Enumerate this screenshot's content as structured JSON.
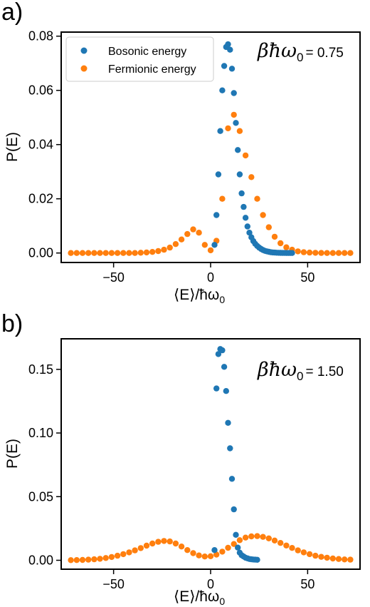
{
  "colors": {
    "bosonic": "#1f77b4",
    "fermionic": "#ff7f0e",
    "axes": "#000000"
  },
  "chart_data": [
    {
      "type": "scatter",
      "panel_label": "a)",
      "annotation": {
        "symbol": "βħω",
        "subscript": "0",
        "value": "= 0.75"
      },
      "xlabel": "⟨E⟩/ħω",
      "xlabel_sub": "0",
      "ylabel": "P(E)",
      "xlim": [
        -77,
        77
      ],
      "ylim": [
        -0.0035,
        0.0815
      ],
      "xticks": [
        -50,
        0,
        50
      ],
      "xtick_labels": [
        "−50",
        "0",
        "50"
      ],
      "yticks": [
        0.0,
        0.02,
        0.04,
        0.06,
        0.08
      ],
      "ytick_labels": [
        "0.00",
        "0.02",
        "0.04",
        "0.06",
        "0.08"
      ],
      "grid": false,
      "legend": {
        "placement": "top-left",
        "entries": [
          "Bosonic energy",
          "Fermionic energy"
        ]
      },
      "series": [
        {
          "name": "Bosonic energy",
          "x": [
            2,
            3,
            4,
            5,
            6,
            7,
            8,
            9,
            10,
            11,
            12,
            13,
            14,
            15,
            16,
            17,
            18,
            19,
            20,
            21,
            22,
            23,
            24,
            25,
            26,
            27,
            28,
            29,
            30,
            31,
            32,
            33,
            34,
            35,
            36,
            37,
            38,
            39,
            40,
            41,
            42
          ],
          "y": [
            0.003,
            0.014,
            0.029,
            0.045,
            0.06,
            0.069,
            0.076,
            0.077,
            0.075,
            0.068,
            0.059,
            0.048,
            0.038,
            0.029,
            0.022,
            0.017,
            0.013,
            0.0098,
            0.0075,
            0.0058,
            0.0044,
            0.0034,
            0.0026,
            0.002,
            0.0015,
            0.0011,
            0.0008,
            0.0006,
            0.00045,
            0.0003,
            0.0002,
            0.00015,
            0.0001,
            7e-05,
            5e-05,
            3e-05,
            2e-05,
            1e-05,
            1e-05,
            0.0,
            0.0
          ]
        },
        {
          "name": "Fermionic energy",
          "x": [
            -72,
            -69,
            -66,
            -63,
            -60,
            -57,
            -54,
            -51,
            -48,
            -45,
            -42,
            -39,
            -36,
            -33,
            -30,
            -27,
            -24,
            -21,
            -18,
            -15,
            -12,
            -9,
            -6,
            -3,
            0,
            3,
            6,
            9,
            12,
            15,
            18,
            21,
            24,
            27,
            30,
            33,
            36,
            39,
            42,
            45,
            48,
            51,
            54,
            57,
            60,
            63,
            66,
            69,
            72
          ],
          "y": [
            0,
            0,
            0,
            0,
            0,
            0,
            0,
            0,
            0,
            0,
            0,
            0,
            0.0001,
            0.0002,
            0.0004,
            0.0007,
            0.0012,
            0.002,
            0.0033,
            0.005,
            0.007,
            0.0087,
            0.0075,
            0.003,
            0.001,
            0.0045,
            0.02,
            0.046,
            0.051,
            0.045,
            0.036,
            0.028,
            0.02,
            0.014,
            0.0095,
            0.006,
            0.0036,
            0.0021,
            0.0012,
            0.0006,
            0.0003,
            0.00015,
            7e-05,
            3e-05,
            1e-05,
            0,
            0,
            0,
            0
          ]
        }
      ]
    },
    {
      "type": "scatter",
      "panel_label": "b)",
      "annotation": {
        "symbol": "βħω",
        "subscript": "0",
        "value": "= 1.50"
      },
      "xlabel": "⟨E⟩/ħω",
      "xlabel_sub": "0",
      "ylabel": "P(E)",
      "xlim": [
        -77,
        77
      ],
      "ylim": [
        -0.007,
        0.174
      ],
      "xticks": [
        -50,
        0,
        50
      ],
      "xtick_labels": [
        "−50",
        "0",
        "50"
      ],
      "yticks": [
        0.0,
        0.05,
        0.1,
        0.15
      ],
      "ytick_labels": [
        "0.00",
        "0.05",
        "0.10",
        "0.15"
      ],
      "grid": false,
      "legend": null,
      "series": [
        {
          "name": "Bosonic energy",
          "x": [
            2,
            3,
            4,
            5,
            6,
            7,
            8,
            9,
            10,
            11,
            12,
            13,
            14,
            15,
            16,
            17,
            18,
            19,
            20,
            21,
            22,
            23,
            24
          ],
          "y": [
            0.008,
            0.135,
            0.162,
            0.166,
            0.165,
            0.152,
            0.133,
            0.108,
            0.088,
            0.064,
            0.04,
            0.02,
            0.01,
            0.006,
            0.004,
            0.003,
            0.002,
            0.0015,
            0.001,
            0.0008,
            0.0006,
            0.0005,
            0.0004
          ]
        },
        {
          "name": "Fermionic energy",
          "x": [
            -72,
            -69,
            -66,
            -63,
            -60,
            -57,
            -54,
            -51,
            -48,
            -45,
            -42,
            -39,
            -36,
            -33,
            -30,
            -27,
            -24,
            -21,
            -18,
            -15,
            -12,
            -9,
            -6,
            -3,
            0,
            3,
            6,
            9,
            12,
            15,
            18,
            21,
            24,
            27,
            30,
            33,
            36,
            39,
            42,
            45,
            48,
            51,
            54,
            57,
            60,
            63,
            66,
            69,
            72
          ],
          "y": [
            0.0001,
            0.0002,
            0.0003,
            0.0005,
            0.0008,
            0.0012,
            0.0018,
            0.0026,
            0.0036,
            0.0048,
            0.0062,
            0.0078,
            0.0096,
            0.0115,
            0.0132,
            0.0145,
            0.0152,
            0.0148,
            0.0132,
            0.0108,
            0.008,
            0.0056,
            0.0038,
            0.003,
            0.0032,
            0.0045,
            0.0068,
            0.0098,
            0.0128,
            0.0158,
            0.0178,
            0.0188,
            0.019,
            0.0184,
            0.0172,
            0.0155,
            0.0136,
            0.0116,
            0.0097,
            0.0078,
            0.0062,
            0.0048,
            0.0036,
            0.0027,
            0.002,
            0.0014,
            0.001,
            0.0007,
            0.0005
          ]
        }
      ]
    }
  ]
}
